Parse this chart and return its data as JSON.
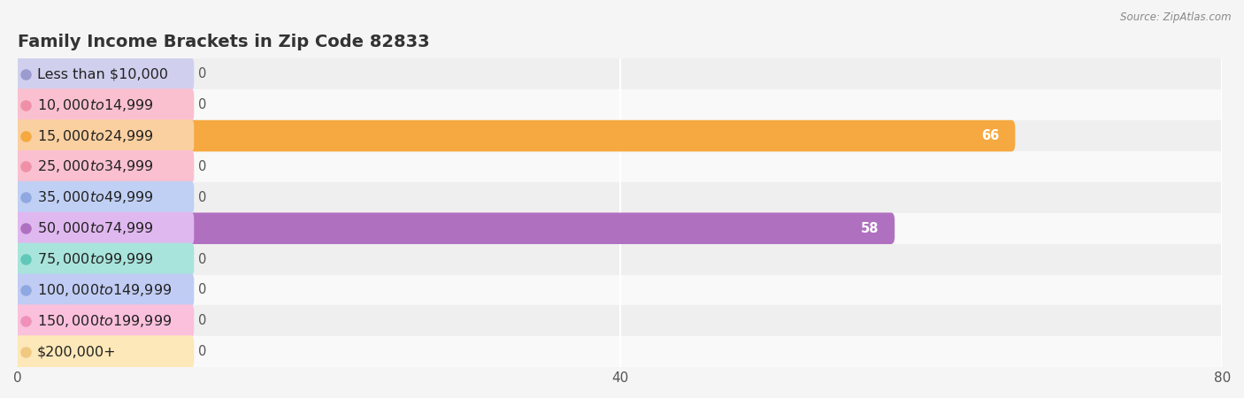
{
  "title": "Family Income Brackets in Zip Code 82833",
  "source": "Source: ZipAtlas.com",
  "categories": [
    "Less than $10,000",
    "$10,000 to $14,999",
    "$15,000 to $24,999",
    "$25,000 to $34,999",
    "$35,000 to $49,999",
    "$50,000 to $74,999",
    "$75,000 to $99,999",
    "$100,000 to $149,999",
    "$150,000 to $199,999",
    "$200,000+"
  ],
  "values": [
    0,
    0,
    66,
    0,
    0,
    58,
    0,
    0,
    0,
    0
  ],
  "bar_colors": [
    "#9b9bcf",
    "#f090a8",
    "#f5a940",
    "#f090a8",
    "#90a8e0",
    "#b070c0",
    "#60c8b8",
    "#90a8e0",
    "#f090b8",
    "#f0c880"
  ],
  "pill_colors": [
    "#d0d0ee",
    "#fac0d0",
    "#fad0a0",
    "#fac0d0",
    "#c0d0f4",
    "#e0b8f0",
    "#a8e4dc",
    "#c0ccf4",
    "#fac0dc",
    "#fce8b8"
  ],
  "bg_color": "#f5f5f5",
  "row_colors": [
    "#efefef",
    "#f9f9f9"
  ],
  "grid_color": "#ffffff",
  "xlim": [
    0,
    80
  ],
  "xticks": [
    0,
    40,
    80
  ],
  "title_fontsize": 14,
  "label_fontsize": 11.5,
  "value_fontsize": 10.5,
  "tick_fontsize": 11
}
